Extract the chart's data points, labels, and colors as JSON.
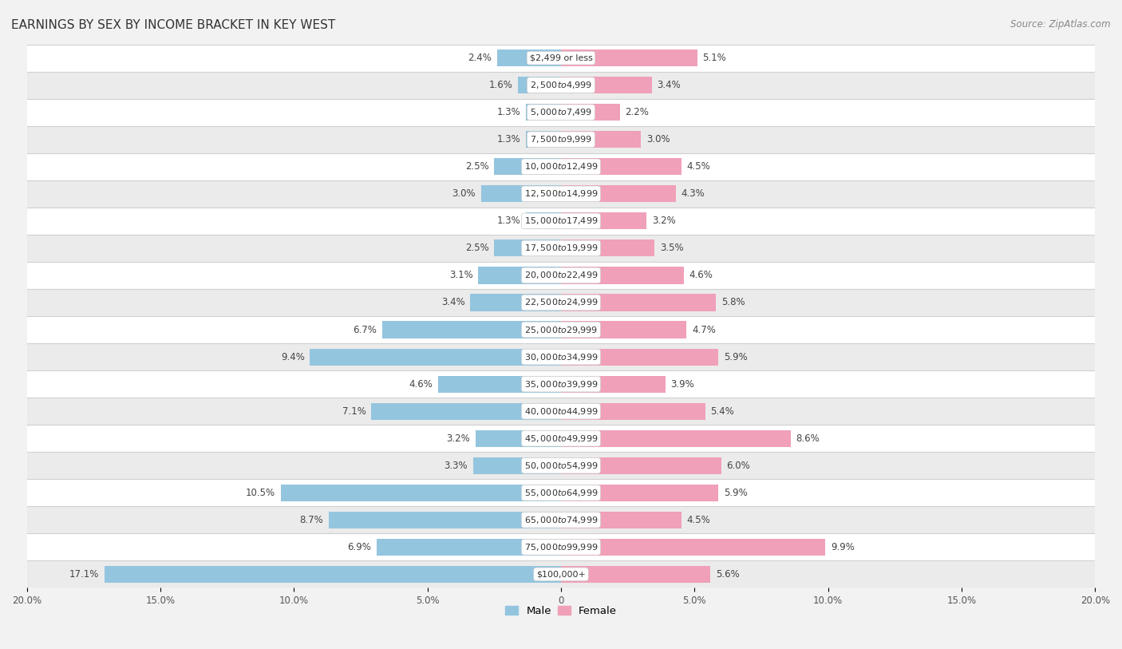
{
  "title": "EARNINGS BY SEX BY INCOME BRACKET IN KEY WEST",
  "source": "Source: ZipAtlas.com",
  "categories": [
    "$2,499 or less",
    "$2,500 to $4,999",
    "$5,000 to $7,499",
    "$7,500 to $9,999",
    "$10,000 to $12,499",
    "$12,500 to $14,999",
    "$15,000 to $17,499",
    "$17,500 to $19,999",
    "$20,000 to $22,499",
    "$22,500 to $24,999",
    "$25,000 to $29,999",
    "$30,000 to $34,999",
    "$35,000 to $39,999",
    "$40,000 to $44,999",
    "$45,000 to $49,999",
    "$50,000 to $54,999",
    "$55,000 to $64,999",
    "$65,000 to $74,999",
    "$75,000 to $99,999",
    "$100,000+"
  ],
  "male_values": [
    2.4,
    1.6,
    1.3,
    1.3,
    2.5,
    3.0,
    1.3,
    2.5,
    3.1,
    3.4,
    6.7,
    9.4,
    4.6,
    7.1,
    3.2,
    3.3,
    10.5,
    8.7,
    6.9,
    17.1
  ],
  "female_values": [
    5.1,
    3.4,
    2.2,
    3.0,
    4.5,
    4.3,
    3.2,
    3.5,
    4.6,
    5.8,
    4.7,
    5.9,
    3.9,
    5.4,
    8.6,
    6.0,
    5.9,
    4.5,
    9.9,
    5.6
  ],
  "male_color": "#94c5df",
  "female_color": "#f0a0b8",
  "male_label": "Male",
  "female_label": "Female",
  "axis_max": 20.0,
  "row_colors": [
    "#ffffff",
    "#ebebeb"
  ],
  "separator_color": "#d0d0d0",
  "label_fontsize": 8.5,
  "category_fontsize": 8.0,
  "title_fontsize": 11,
  "source_fontsize": 8.5,
  "tick_fontsize": 8.5
}
